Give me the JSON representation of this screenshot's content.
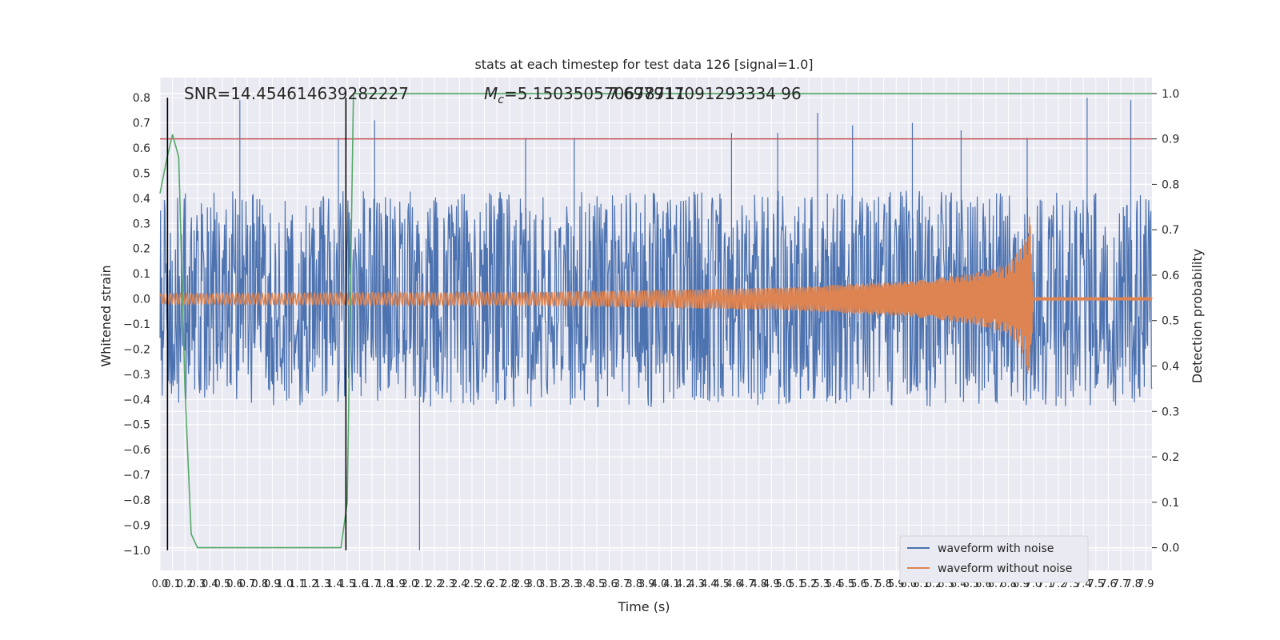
{
  "chart_data": {
    "type": "line",
    "title": "stats at each timestep for test data 126 [signal=1.0]",
    "xlabel": "Time (s)",
    "ylabel": "Whitened strain",
    "y2label": "Detection probability",
    "xlim": [
      0.0,
      7.95
    ],
    "ylim": [
      -1.08,
      0.88
    ],
    "y2lim": [
      -0.05,
      1.035
    ],
    "x_ticks": [
      "0.0",
      "0.1",
      "0.2",
      "0.3",
      "0.4",
      "0.5",
      "0.6",
      "0.7",
      "0.8",
      "0.9",
      "1.0",
      "1.1",
      "1.2",
      "1.3",
      "1.4",
      "1.5",
      "1.6",
      "1.7",
      "1.8",
      "1.9",
      "2.0",
      "2.1",
      "2.2",
      "2.3",
      "2.4",
      "2.5",
      "2.6",
      "2.7",
      "2.8",
      "2.9",
      "3.0",
      "3.1",
      "3.2",
      "3.3",
      "3.4",
      "3.5",
      "3.6",
      "3.7",
      "3.8",
      "3.9",
      "4.0",
      "4.1",
      "4.2",
      "4.3",
      "4.4",
      "4.5",
      "4.6",
      "4.7",
      "4.8",
      "4.9",
      "5.0",
      "5.1",
      "5.2",
      "5.3",
      "5.4",
      "5.5",
      "5.6",
      "5.7",
      "5.8",
      "5.9",
      "6.0",
      "6.1",
      "6.2",
      "6.3",
      "6.4",
      "6.5",
      "6.6",
      "6.7",
      "6.8",
      "6.9",
      "7.0",
      "7.1",
      "7.2",
      "7.3",
      "7.4",
      "7.5",
      "7.6",
      "7.7",
      "7.8",
      "7.9"
    ],
    "y_ticks": [
      "0.8",
      "0.7",
      "0.6",
      "0.5",
      "0.4",
      "0.3",
      "0.2",
      "0.1",
      "0.0",
      "−0.1",
      "−0.2",
      "−0.3",
      "−0.4",
      "−0.5",
      "−0.6",
      "−0.7",
      "−0.8",
      "−0.9",
      "−1.0"
    ],
    "y2_ticks": [
      "1.0",
      "0.9",
      "0.8",
      "0.7",
      "0.6",
      "0.5",
      "0.4",
      "0.3",
      "0.2",
      "0.1",
      "0.0"
    ],
    "annotations": {
      "snr": "SNR=14.454614639282227",
      "mc_symbol": "M",
      "mc_sub": "c",
      "mc_value": "=5.150350570678711",
      "overlap": "7.697917091293334 96"
    },
    "series": [
      {
        "name": "waveform with noise",
        "color": "#4c72b0",
        "description": "noise band with random spikes",
        "envelope": {
          "x": [
            0.0,
            7.95
          ],
          "upper": [
            0.43,
            0.43
          ],
          "lower": [
            -0.43,
            -0.43
          ]
        },
        "peaks": {
          "x": [
            0.64,
            1.43,
            1.72,
            2.08,
            2.93,
            3.32,
            4.58,
            4.95,
            5.27,
            5.55,
            6.03,
            6.42,
            6.95,
            7.43,
            7.78
          ],
          "y": [
            0.79,
            0.64,
            0.71,
            -1.0,
            0.64,
            0.64,
            0.66,
            0.66,
            0.74,
            0.69,
            0.7,
            0.67,
            0.64,
            0.8,
            0.79
          ]
        }
      },
      {
        "name": "waveform without noise",
        "color": "#dd8452",
        "description": "chirp with growing amplitude, merger near 6.97 s",
        "envelope": {
          "x": [
            0.0,
            1.0,
            3.0,
            5.0,
            6.0,
            6.5,
            6.8,
            6.93,
            6.97,
            7.0,
            7.95
          ],
          "amplitude": [
            0.02,
            0.022,
            0.026,
            0.045,
            0.07,
            0.1,
            0.14,
            0.23,
            0.35,
            0.006,
            0.006
          ]
        }
      },
      {
        "color": "#55a868",
        "axis": "right",
        "x": [
          0.0,
          0.05,
          0.1,
          0.15,
          0.2,
          0.25,
          0.3,
          0.35,
          0.5,
          1.0,
          1.4,
          1.45,
          1.5,
          1.55,
          7.95
        ],
        "y": [
          0.78,
          0.85,
          0.91,
          0.86,
          0.35,
          0.03,
          0.0,
          0.0,
          0.0,
          0.0,
          0.0,
          0.0,
          0.1,
          1.0,
          1.0
        ]
      },
      {
        "color": "#c44e52",
        "axis": "right",
        "x": [
          0.0,
          7.95
        ],
        "y": [
          0.9,
          0.9
        ]
      }
    ],
    "vlines": {
      "color": "#000000",
      "x": [
        0.06,
        1.49
      ],
      "ymin": -1.0,
      "ymax": 0.8
    },
    "grid": true,
    "legend_position": "lower-right"
  }
}
